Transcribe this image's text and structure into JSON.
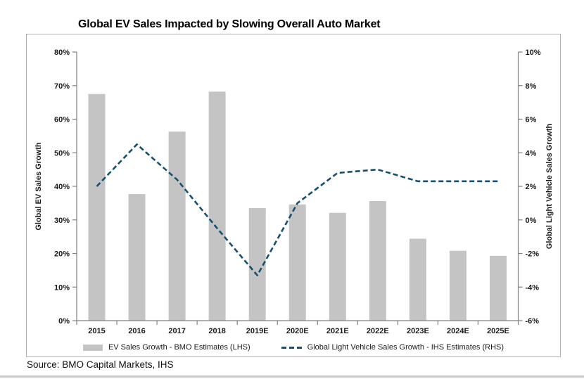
{
  "title": "Global EV Sales Impacted by Slowing Overall Auto Market",
  "source": "Source: BMO Capital Markets, IHS",
  "chart_data": {
    "type": "combo-bar-line",
    "categories": [
      "2015",
      "2016",
      "2017",
      "2018",
      "2019E",
      "2020E",
      "2021E",
      "2022E",
      "2023E",
      "2024E",
      "2025E"
    ],
    "series": [
      {
        "name": "EV Sales Growth - BMO Estimates (LHS)",
        "type": "bar",
        "axis": "left",
        "color": "#c4c4c4",
        "values": [
          67.5,
          37.7,
          56.3,
          68.2,
          33.5,
          34.6,
          32.1,
          35.6,
          24.4,
          20.8,
          19.3
        ]
      },
      {
        "name": "Global Light Vehicle Sales Growth - IHS Estimates (RHS)",
        "type": "dashed-line",
        "axis": "right",
        "color": "#174f6e",
        "values": [
          2.0,
          4.5,
          2.4,
          -0.5,
          -3.3,
          1.0,
          2.8,
          3.0,
          2.3,
          2.3,
          2.3
        ]
      }
    ],
    "left_axis": {
      "label": "Global EV Sales Growth",
      "min": 0,
      "max": 80,
      "step": 10,
      "tick_suffix": "%"
    },
    "right_axis": {
      "label": "Global Light Vehicle Sales Growth",
      "min": -6,
      "max": 10,
      "step": 2,
      "tick_suffix": "%"
    },
    "legend_position": "bottom",
    "grid": false,
    "axis_color": "#808080"
  }
}
